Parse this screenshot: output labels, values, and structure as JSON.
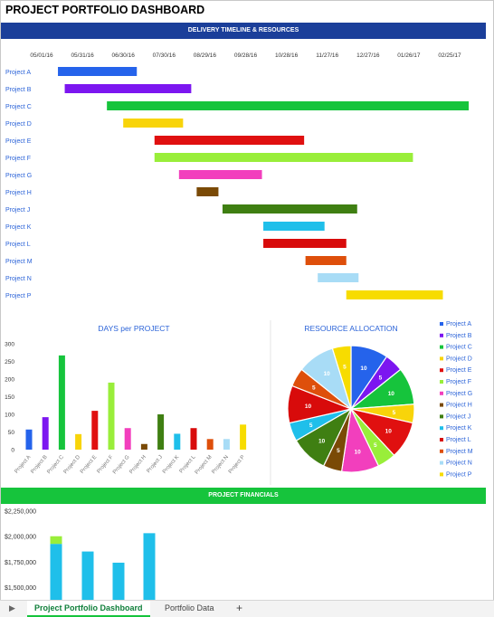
{
  "title": "PROJECT PORTFOLIO DASHBOARD",
  "sections": {
    "timeline": "DELIVERY TIMELINE & RESOURCES",
    "financials": "PROJECT FINANCIALS"
  },
  "tabs": {
    "active": "Project Portfolio Dashboard",
    "other": "Portfolio Data",
    "add": "+",
    "scroll": "▶"
  },
  "colors": {
    "Project A": "#2563eb",
    "Project B": "#7c16f0",
    "Project C": "#16c43c",
    "Project D": "#f8d40a",
    "Project E": "#e01010",
    "Project F": "#99ee3a",
    "Project G": "#f23fbd",
    "Project H": "#7a4a06",
    "Project J": "#3f7f12",
    "Project K": "#1fbfea",
    "Project L": "#d80b0b",
    "Project M": "#de4f0b",
    "Project N": "#a8dcf6",
    "Project P": "#f7dc00"
  },
  "chart_data": [
    {
      "type": "bar",
      "subtype": "gantt",
      "title": "DELIVERY TIMELINE & RESOURCES",
      "x_ticks": [
        "05/01/16",
        "05/31/16",
        "06/30/16",
        "07/30/16",
        "08/29/16",
        "09/28/16",
        "10/28/16",
        "11/27/16",
        "12/27/16",
        "01/26/17",
        "02/25/17"
      ],
      "x_tick_days": [
        0,
        30,
        60,
        90,
        120,
        150,
        180,
        210,
        240,
        270,
        300
      ],
      "tasks": [
        {
          "name": "Project A",
          "start": 12,
          "end": 70
        },
        {
          "name": "Project B",
          "start": 17,
          "end": 110
        },
        {
          "name": "Project C",
          "start": 48,
          "end": 314
        },
        {
          "name": "Project D",
          "start": 60,
          "end": 104
        },
        {
          "name": "Project E",
          "start": 83,
          "end": 193
        },
        {
          "name": "Project F",
          "start": 83,
          "end": 273
        },
        {
          "name": "Project G",
          "start": 101,
          "end": 162
        },
        {
          "name": "Project H",
          "start": 114,
          "end": 130
        },
        {
          "name": "Project J",
          "start": 133,
          "end": 232
        },
        {
          "name": "Project K",
          "start": 163,
          "end": 208
        },
        {
          "name": "Project L",
          "start": 163,
          "end": 224
        },
        {
          "name": "Project M",
          "start": 194,
          "end": 224
        },
        {
          "name": "Project N",
          "start": 203,
          "end": 233
        },
        {
          "name": "Project P",
          "start": 224,
          "end": 295
        }
      ]
    },
    {
      "type": "bar",
      "title": "DAYS per PROJECT",
      "categories": [
        "Project A",
        "Project B",
        "Project C",
        "Project D",
        "Project E",
        "Project F",
        "Project G",
        "Project H",
        "Project J",
        "Project K",
        "Project L",
        "Project M",
        "Project N",
        "Project P"
      ],
      "values": [
        57,
        92,
        267,
        44,
        110,
        190,
        61,
        16,
        100,
        45,
        61,
        30,
        30,
        71
      ],
      "y_ticks": [
        0,
        50,
        100,
        150,
        200,
        250,
        300
      ],
      "ylim": [
        0,
        300
      ],
      "grid": false
    },
    {
      "type": "pie",
      "title": "RESOURCE ALLOCATION",
      "legend": "right",
      "slices": [
        {
          "label": "Project A",
          "value": 10
        },
        {
          "label": "Project B",
          "value": 5
        },
        {
          "label": "Project C",
          "value": 10
        },
        {
          "label": "Project D",
          "value": 5
        },
        {
          "label": "Project E",
          "value": 10
        },
        {
          "label": "Project F",
          "value": 5
        },
        {
          "label": "Project G",
          "value": 10
        },
        {
          "label": "Project H",
          "value": 5
        },
        {
          "label": "Project J",
          "value": 10
        },
        {
          "label": "Project K",
          "value": 5
        },
        {
          "label": "Project L",
          "value": 10
        },
        {
          "label": "Project M",
          "value": 5
        },
        {
          "label": "Project N",
          "value": 10
        },
        {
          "label": "Project P",
          "value": 5
        }
      ]
    },
    {
      "type": "bar",
      "subtype": "stacked",
      "title": "PROJECT FINANCIALS",
      "y_ticks": [
        "$1,500,000",
        "$1,750,000",
        "$2,000,000",
        "$2,250,000"
      ],
      "y_tick_values": [
        1500000,
        1750000,
        2000000,
        2250000
      ],
      "ylim": [
        1375000,
        2300000
      ],
      "groups": [
        {
          "segments": [
            {
              "value": 1925000,
              "color": "#1fbfea"
            },
            {
              "value": 75000,
              "color": "#99ee3a"
            }
          ]
        },
        {
          "segments": [
            {
              "value": 1850000,
              "color": "#1fbfea"
            }
          ]
        },
        {
          "segments": [
            {
              "value": 1740000,
              "color": "#1fbfea"
            }
          ]
        },
        {
          "segments": [
            {
              "value": 2030000,
              "color": "#1fbfea"
            }
          ]
        }
      ]
    }
  ]
}
